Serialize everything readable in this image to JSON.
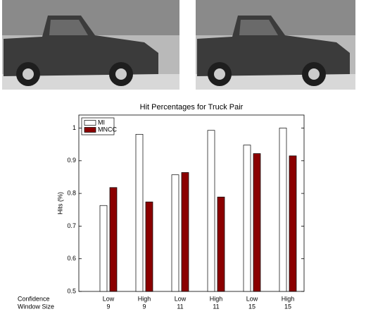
{
  "chart_data": {
    "type": "bar",
    "title": "Hit Percentages for Truck Pair",
    "y_label": "Hits (%)",
    "categories": [
      "Low",
      "High",
      "Low",
      "High",
      "Low",
      "High"
    ],
    "category_rows": [
      {
        "name": "Confidence",
        "labels": [
          "Low",
          "High",
          "Low",
          "High",
          "Low",
          "High"
        ]
      },
      {
        "name": "Window Size",
        "labels": [
          9,
          9,
          11,
          11,
          15,
          15
        ]
      }
    ],
    "series": [
      {
        "name": "MI",
        "color": "#ffffff",
        "values": [
          0.763,
          0.981,
          0.857,
          0.993,
          0.948,
          1.0
        ]
      },
      {
        "name": "MNCC",
        "color": "#8b0000",
        "values": [
          0.818,
          0.774,
          0.864,
          0.789,
          0.922,
          0.915
        ]
      }
    ],
    "ylim": [
      0.5,
      1.04
    ],
    "yticks": [
      0.5,
      0.6,
      0.7,
      0.8,
      0.9,
      1
    ],
    "legend": "upper left"
  }
}
